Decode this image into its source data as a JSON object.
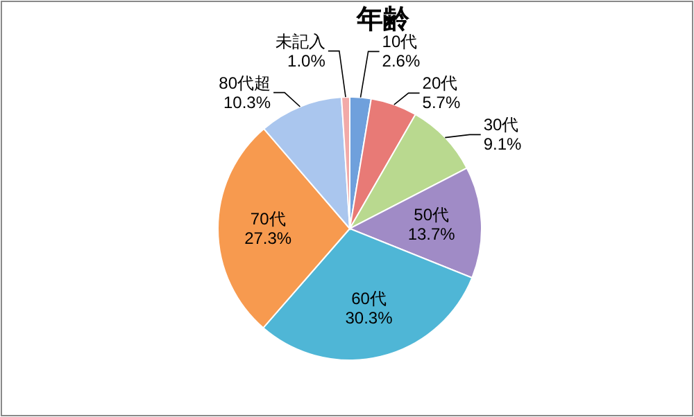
{
  "chart_data": {
    "type": "pie",
    "title": "年齢",
    "categories": [
      "10代",
      "20代",
      "30代",
      "50代",
      "60代",
      "70代",
      "80代超",
      "未記入"
    ],
    "values": [
      2.6,
      5.7,
      9.1,
      13.7,
      30.3,
      27.3,
      10.3,
      1.0
    ],
    "value_labels": [
      "2.6%",
      "5.7%",
      "9.1%",
      "13.7%",
      "30.3%",
      "27.3%",
      "10.3%",
      "1.0%"
    ],
    "colors": [
      "#6fa0dc",
      "#e87a76",
      "#b9d98f",
      "#a08bc6",
      "#4fb6d6",
      "#f79a4f",
      "#aac6ee",
      "#f2aaa8"
    ]
  }
}
